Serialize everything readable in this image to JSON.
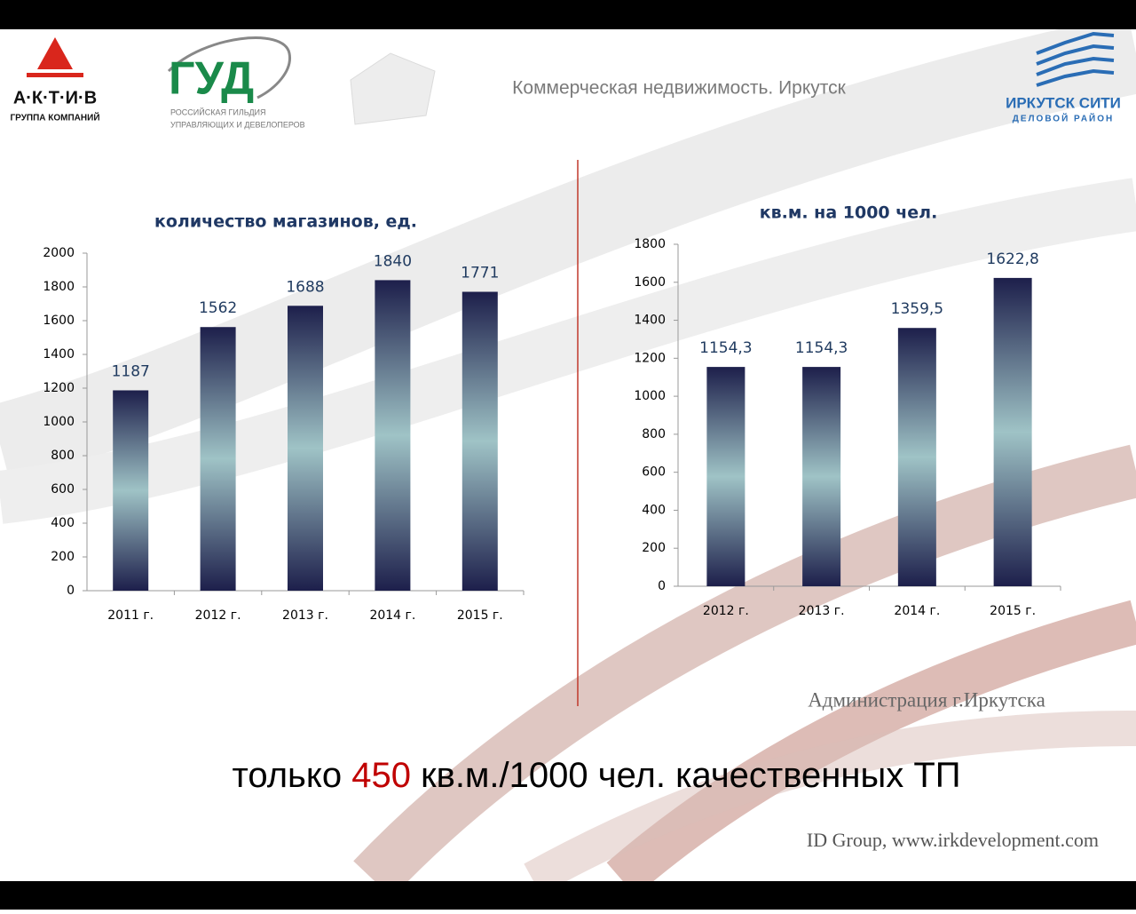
{
  "header": {
    "title": "Коммерческая недвижимость. Иркутск",
    "logos": [
      {
        "name": "А·К·Т·И·В",
        "subtitle": "ГРУППА КОМПАНИЙ"
      },
      {
        "name": "ГУД",
        "subtitle": [
          "РОССИЙСКАЯ ГИЛЬДИЯ",
          "УПРАВЛЯЮЩИХ И ДЕВЕЛОПЕРОВ"
        ]
      },
      {
        "name": "ИРКУТСК СИТИ",
        "subtitle": "ДЕЛОВОЙ РАЙОН"
      }
    ]
  },
  "chart_data": [
    {
      "type": "bar",
      "title": "количество магазинов, ед.",
      "categories": [
        "2011 г.",
        "2012 г.",
        "2013 г.",
        "2014 г.",
        "2015 г."
      ],
      "values": [
        1187,
        1562,
        1688,
        1840,
        1771
      ],
      "gradient": [
        "#1d1f4b",
        "#9fc3c6",
        "#1d1f4b"
      ],
      "ylim": [
        0,
        2000
      ],
      "yticks": [
        0,
        200,
        400,
        600,
        800,
        1000,
        1200,
        1400,
        1600,
        1800,
        2000
      ],
      "grid": false
    },
    {
      "type": "bar",
      "title": "кв.м. на 1000 чел.",
      "categories": [
        "2012 г.",
        "2013 г.",
        "2014 г.",
        "2015 г."
      ],
      "values": [
        1154.3,
        1154.3,
        1359.5,
        1622.8
      ],
      "value_labels": [
        "1154,3",
        "1154,3",
        "1359,5",
        "1622,8"
      ],
      "gradient": [
        "#1d1f4b",
        "#9fc3c6",
        "#1d1f4b"
      ],
      "ylim": [
        0,
        1800
      ],
      "yticks": [
        0,
        200,
        400,
        600,
        800,
        1000,
        1200,
        1400,
        1600,
        1800
      ],
      "grid": false
    }
  ],
  "source": "Администрация г.Иркутска",
  "headline": [
    "только ",
    "450",
    " кв.м./1000 чел. качественных ТП"
  ],
  "footer": "ID Group, www.irkdevelopment.com"
}
